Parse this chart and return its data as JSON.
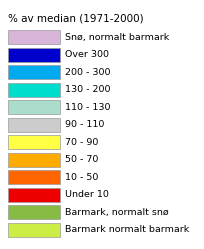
{
  "title": "% av median (1971-2000)",
  "legend_items": [
    {
      "label": "Snø, normalt barmark",
      "color": "#D8B4D8"
    },
    {
      "label": "Over 300",
      "color": "#0000CC"
    },
    {
      "label": "200 - 300",
      "color": "#00AAEE"
    },
    {
      "label": "130 - 200",
      "color": "#00DDCC"
    },
    {
      "label": "110 - 130",
      "color": "#AADDCC"
    },
    {
      "label": "90 - 110",
      "color": "#CCCCCC"
    },
    {
      "label": "70 - 90",
      "color": "#FFFF44"
    },
    {
      "label": "50 - 70",
      "color": "#FFAA00"
    },
    {
      "label": "10 - 50",
      "color": "#FF6600"
    },
    {
      "label": "Under 10",
      "color": "#EE0000"
    },
    {
      "label": "Barmark, normalt snø",
      "color": "#88BB44"
    },
    {
      "label": "Barmark normalt barmark",
      "color": "#CCEE44"
    }
  ],
  "background_color": "#FFFFFF",
  "title_fontsize": 7.5,
  "label_fontsize": 6.8
}
